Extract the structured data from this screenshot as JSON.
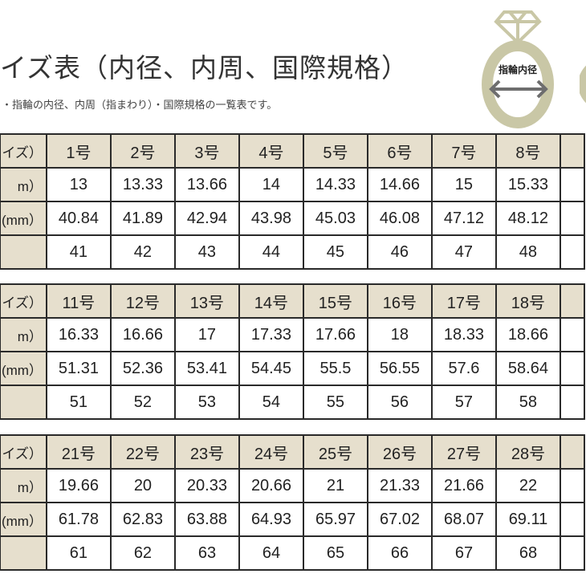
{
  "header": {
    "title": "イズ表（内径、内周、国際規格）",
    "subtitle": "・指輪の内径、内周（指まわり）・国際規格の一覧表です。",
    "ring_label": "指輪内径"
  },
  "colors": {
    "header_bg": "#e6dfcd",
    "ring": "#c9c7a6",
    "arrow": "#6e6e6e"
  },
  "tables": [
    {
      "labels": [
        "イズ）",
        "m）",
        "(mm）",
        ""
      ],
      "sizes": [
        "1号",
        "2号",
        "3号",
        "4号",
        "5号",
        "6号",
        "7号",
        "8号"
      ],
      "diameter": [
        "13",
        "13.33",
        "13.66",
        "14",
        "14.33",
        "14.66",
        "15",
        "15.33"
      ],
      "circumference": [
        "40.84",
        "41.89",
        "42.94",
        "43.98",
        "45.03",
        "46.08",
        "47.12",
        "48.12"
      ],
      "intl": [
        "41",
        "42",
        "43",
        "44",
        "45",
        "46",
        "47",
        "48"
      ]
    },
    {
      "labels": [
        "イズ）",
        "m）",
        "(mm）",
        ""
      ],
      "sizes": [
        "11号",
        "12号",
        "13号",
        "14号",
        "15号",
        "16号",
        "17号",
        "18号"
      ],
      "diameter": [
        "16.33",
        "16.66",
        "17",
        "17.33",
        "17.66",
        "18",
        "18.33",
        "18.66"
      ],
      "circumference": [
        "51.31",
        "52.36",
        "53.41",
        "54.45",
        "55.5",
        "56.55",
        "57.6",
        "58.64"
      ],
      "intl": [
        "51",
        "52",
        "53",
        "54",
        "55",
        "56",
        "57",
        "58"
      ]
    },
    {
      "labels": [
        "イズ）",
        "m）",
        "(mm）",
        ""
      ],
      "sizes": [
        "21号",
        "22号",
        "23号",
        "24号",
        "25号",
        "26号",
        "27号",
        "28号"
      ],
      "diameter": [
        "19.66",
        "20",
        "20.33",
        "20.66",
        "21",
        "21.33",
        "21.66",
        "22"
      ],
      "circumference": [
        "61.78",
        "62.83",
        "63.88",
        "64.93",
        "65.97",
        "67.02",
        "68.07",
        "69.11"
      ],
      "intl": [
        "61",
        "62",
        "63",
        "64",
        "65",
        "66",
        "67",
        "68"
      ]
    }
  ]
}
